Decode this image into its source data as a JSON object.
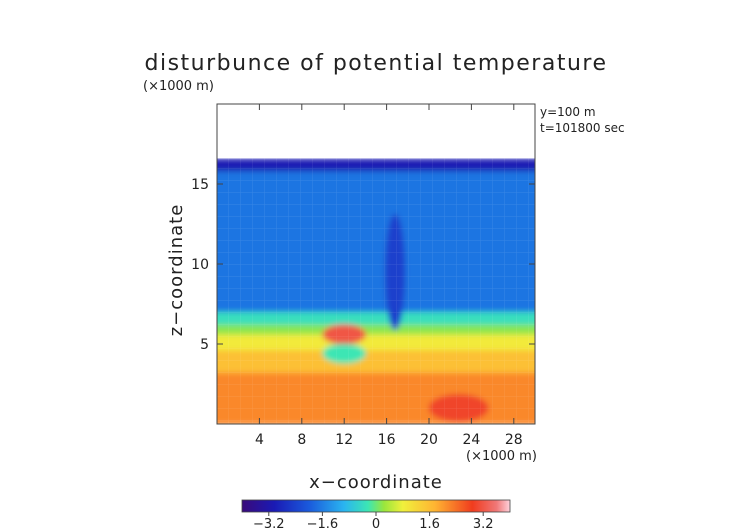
{
  "chart_data": {
    "type": "heatmap",
    "title": "disturbunce of potential temperature",
    "xlabel": "x−coordinate",
    "ylabel": "z−coordinate",
    "x_unit": "(×1000 m)",
    "y_unit": "(×1000 m)",
    "xlim": [
      0,
      30
    ],
    "ylim": [
      0,
      20
    ],
    "x_ticks": [
      4,
      8,
      12,
      16,
      20,
      24,
      28
    ],
    "x_tick_labels": [
      "4",
      "8",
      "12",
      "16",
      "20",
      "24",
      "28"
    ],
    "y_ticks": [
      5,
      10,
      15
    ],
    "y_tick_labels": [
      "5",
      "10",
      "15"
    ],
    "annotations": [
      "y=100 m",
      "t=101800 sec"
    ],
    "colorbar": {
      "min": -4.0,
      "max": 4.0,
      "ticks": [
        -3.2,
        -1.6,
        0,
        1.6,
        3.2
      ],
      "tick_labels": [
        "−3.2",
        "−1.6",
        "0",
        "1.6",
        "3.2"
      ]
    },
    "field_top_z": 16.6,
    "bands": [
      {
        "z_low": 15.8,
        "z_high": 16.6,
        "value": -3.0
      },
      {
        "z_low": 7.0,
        "z_high": 15.8,
        "value": -1.7
      },
      {
        "z_low": 6.2,
        "z_high": 7.0,
        "value": -0.4
      },
      {
        "z_low": 5.6,
        "z_high": 6.2,
        "value": 0.2
      },
      {
        "z_low": 4.6,
        "z_high": 5.6,
        "value": 0.9
      },
      {
        "z_low": 3.2,
        "z_high": 4.6,
        "value": 1.6
      },
      {
        "z_low": 0.0,
        "z_high": 3.2,
        "value": 2.2
      }
    ],
    "features": [
      {
        "x": 12.0,
        "z": 5.6,
        "value": 3.2
      },
      {
        "x": 12.0,
        "z": 4.4,
        "value": -0.3
      },
      {
        "x": 22.8,
        "z": 1.0,
        "value": 3.0
      },
      {
        "x": 16.8,
        "z": 9.5,
        "value": -2.4
      }
    ]
  }
}
